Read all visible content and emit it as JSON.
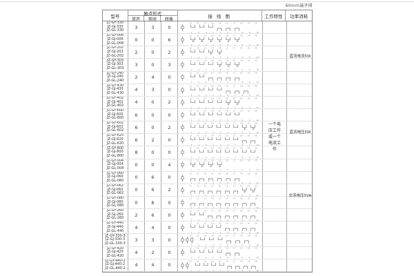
{
  "caption": "60mm端子排",
  "table": {
    "headers": {
      "model": "型号",
      "contact_form": "触点形式",
      "no": "常开",
      "nc": "常闭",
      "co": "转换",
      "wiring": "接 线 图",
      "working": "工作特性",
      "power": "功率消耗"
    },
    "working_note": "一个电压工作或一个电流工作",
    "power_notes": [
      "直流电流5W",
      "直流电压5W",
      "交流电压5VA"
    ],
    "terminals_top": "11 12 13 14 15 16 17 18 19 20",
    "terminals_bottom": "1 2 3 4 5 6 7 8 9 10",
    "rows": [
      {
        "models": [
          "JZ-GY-330",
          "JZ-GJ-330",
          "JZ-GL-330"
        ],
        "no": 3,
        "nc": 3,
        "co": 0,
        "coils": 1
      },
      {
        "models": [
          "JZ-GY-006",
          "JZ-GJ-006",
          "JZ-GL-006"
        ],
        "no": 0,
        "nc": 0,
        "co": 6,
        "coils": 1
      },
      {
        "models": [
          "JZ-GY-202",
          "JZ-GJ-202",
          "JZ-GL-202"
        ],
        "no": 2,
        "nc": 0,
        "co": 2,
        "coils": 1
      },
      {
        "models": [
          "JZ-GY-303",
          "JZ-GJ-303",
          "JZ-GL-303"
        ],
        "no": 3,
        "nc": 0,
        "co": 3,
        "coils": 1
      },
      {
        "models": [
          "JZ-GY-240",
          "JZ-GJ-240",
          "JZ-GL-240"
        ],
        "no": 2,
        "nc": 4,
        "co": 0,
        "coils": 1
      },
      {
        "models": [
          "JZ-GY-430",
          "JZ-GJ-430",
          "JZ-GL-430"
        ],
        "no": 4,
        "nc": 3,
        "co": 0,
        "coils": 1
      },
      {
        "models": [
          "JZ-GY-402",
          "JZ-GJ-402",
          "JZ-GL-402"
        ],
        "no": 4,
        "nc": 0,
        "co": 2,
        "coils": 1
      },
      {
        "models": [
          "JZ-GY-600",
          "JZ-GJ-600",
          "JZ-GL-600"
        ],
        "no": 6,
        "nc": 0,
        "co": 0,
        "coils": 1
      },
      {
        "models": [
          "JZ-GY-602",
          "JZ-GJ-602",
          "JZ-GL-602"
        ],
        "no": 6,
        "nc": 0,
        "co": 2,
        "coils": 1
      },
      {
        "models": [
          "JZ-GY-620",
          "JZ-GJ-620",
          "JZ-GL-620"
        ],
        "no": 6,
        "nc": 2,
        "co": 0,
        "coils": 1
      },
      {
        "models": [
          "JZ-GY-800",
          "JZ-GJ-800",
          "JZ-GL-800"
        ],
        "no": 8,
        "nc": 0,
        "co": 0,
        "coils": 1
      },
      {
        "models": [
          "JZ-GY-004",
          "JZ-GJ-004",
          "JZ-GL-004"
        ],
        "no": 0,
        "nc": 0,
        "co": 4,
        "coils": 1
      },
      {
        "models": [
          "JZ-GY-060",
          "JZ-GJ-060",
          "JZ-GL-060"
        ],
        "no": 0,
        "nc": 6,
        "co": 0,
        "coils": 1
      },
      {
        "models": [
          "JZ-GY-062",
          "JZ-GJ-062",
          "JZ-GL-062"
        ],
        "no": 0,
        "nc": 6,
        "co": 2,
        "coils": 1
      },
      {
        "models": [
          "JZ-GY-080",
          "JZ-GJ-080",
          "JZ-GL-080"
        ],
        "no": 0,
        "nc": 8,
        "co": 0,
        "coils": 1
      },
      {
        "models": [
          "JZ-GY-260",
          "JZ-GJ-260",
          "JZ-GL-260"
        ],
        "no": 2,
        "nc": 6,
        "co": 0,
        "coils": 1
      },
      {
        "models": [
          "JZ-GY-440",
          "JZ-GJ-440",
          "JZ-GL-440"
        ],
        "no": 4,
        "nc": 4,
        "co": 0,
        "coils": 1
      },
      {
        "models": [
          "JZ-GY-330-3",
          "JZ-GJ-330-3",
          "JZ-GL-330-3"
        ],
        "no": 3,
        "nc": 3,
        "co": 0,
        "coils": 3
      },
      {
        "models": [
          "JZ-GY-420",
          "JZ-GJ-420",
          "JZ-GL-420"
        ],
        "no": 4,
        "nc": 2,
        "co": 0,
        "coils": 1
      },
      {
        "models": [
          "JZ-GY-440-2",
          "JZ-GJ-440-2",
          "JZ-GL-440-2"
        ],
        "no": 4,
        "nc": 4,
        "co": 0,
        "coils": 2
      }
    ]
  }
}
